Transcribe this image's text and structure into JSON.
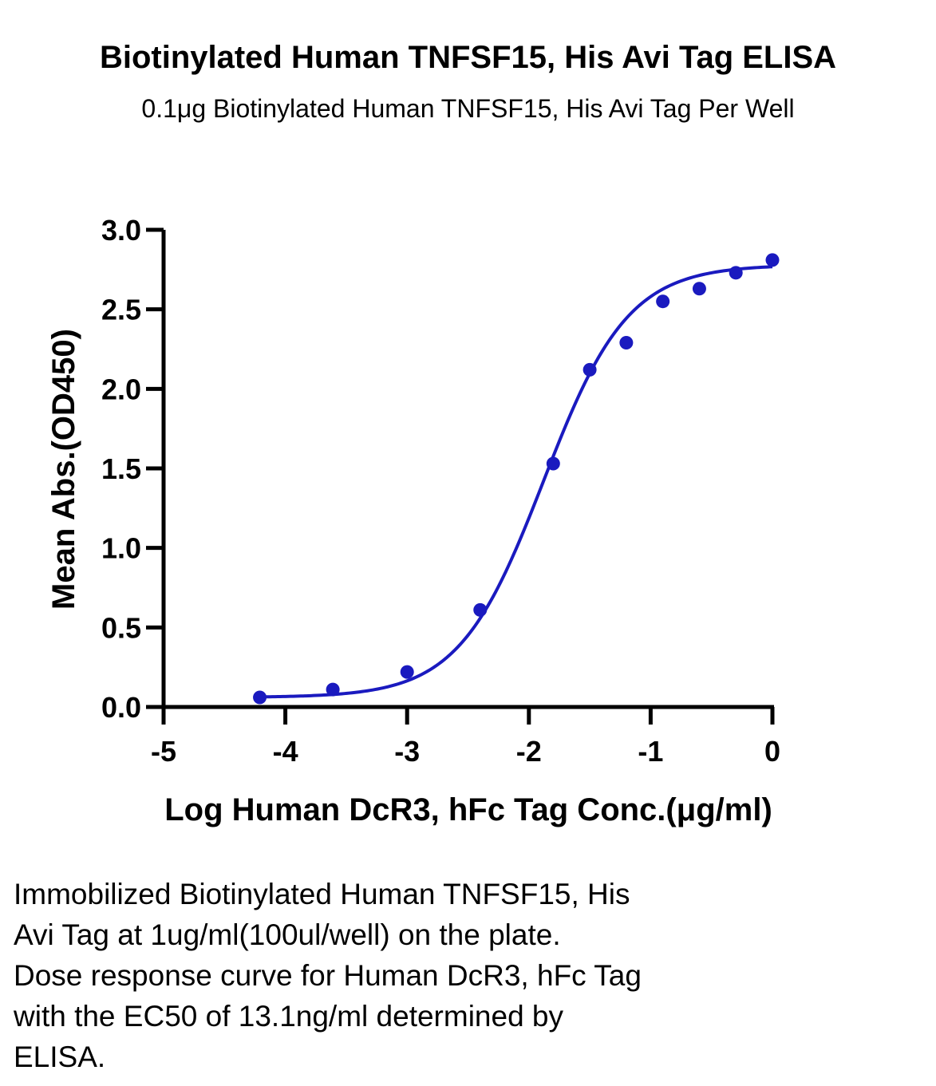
{
  "chart_data": {
    "type": "scatter",
    "title": "Biotinylated Human TNFSF15, His Avi Tag ELISA",
    "subtitle": "0.1μg Biotinylated Human TNFSF15, His Avi Tag Per Well",
    "xlabel": "Log Human DcR3, hFc Tag Conc.(μg/ml)",
    "ylabel": "Mean Abs.(OD450)",
    "xlim": [
      -5,
      0
    ],
    "ylim": [
      0.0,
      3.0
    ],
    "x_ticks": [
      "-5",
      "-4",
      "-3",
      "-2",
      "-1",
      "0"
    ],
    "x_tick_values": [
      -5,
      -4,
      -3,
      -2,
      -1,
      0
    ],
    "y_ticks": [
      "0.0",
      "0.5",
      "1.0",
      "1.5",
      "2.0",
      "2.5",
      "3.0"
    ],
    "y_tick_values": [
      0.0,
      0.5,
      1.0,
      1.5,
      2.0,
      2.5,
      3.0
    ],
    "grid": false,
    "color": "#1a1abf",
    "points": {
      "x": [
        -4.21,
        -3.61,
        -3.0,
        -2.4,
        -1.8,
        -1.5,
        -1.2,
        -0.9,
        -0.6,
        -0.3,
        0.0
      ],
      "y": [
        0.06,
        0.11,
        0.22,
        0.61,
        1.53,
        2.12,
        2.29,
        2.55,
        2.63,
        2.73,
        2.81
      ]
    },
    "fit": {
      "model": "4PL",
      "bottom": 0.06,
      "top": 2.78,
      "logEC50": -1.88,
      "hill": 1.25
    }
  },
  "caption": {
    "lines": [
      "Immobilized Biotinylated Human TNFSF15, His",
      "Avi Tag at 1ug/ml(100ul/well) on the plate.",
      "Dose response curve for Human DcR3, hFc Tag",
      "with the EC50 of 13.1ng/ml determined by",
      "ELISA."
    ]
  }
}
